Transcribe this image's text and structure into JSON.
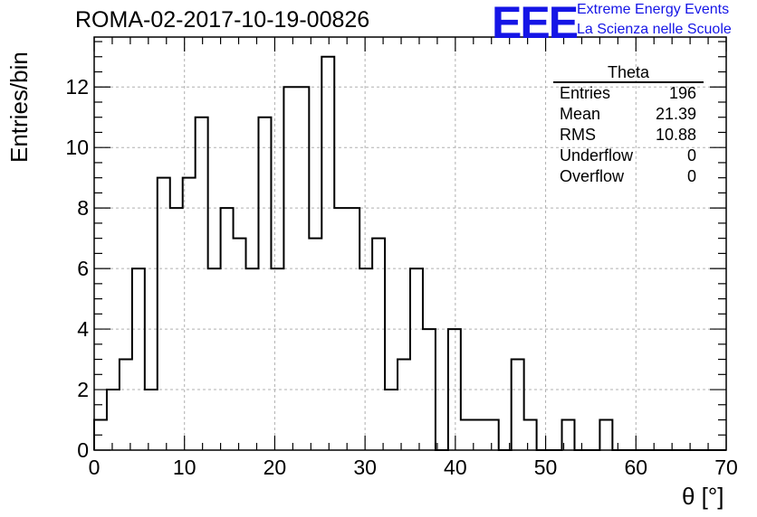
{
  "header": {
    "run_title": "ROMA-02-2017-10-19-00826",
    "logo_letters": "EEE",
    "logo_line1": "Extreme Energy Events",
    "logo_line2": "La Scienza nelle Scuole",
    "brand_color": "#1515e6"
  },
  "stats_box": {
    "title": "Theta",
    "rows": [
      {
        "label": "Entries",
        "value": "196"
      },
      {
        "label": "Mean",
        "value": "21.39"
      },
      {
        "label": "RMS",
        "value": "10.88"
      },
      {
        "label": "Underflow",
        "value": "0"
      },
      {
        "label": "Overflow",
        "value": "0"
      }
    ]
  },
  "chart_data": {
    "type": "bar",
    "style": "step-histogram",
    "title": "ROMA-02-2017-10-19-00826",
    "xlabel": "θ [°]",
    "ylabel": "Entries/bin",
    "xlim": [
      0,
      70
    ],
    "ylim": [
      0,
      13.65
    ],
    "x_ticks": [
      0,
      10,
      20,
      30,
      40,
      50,
      60,
      70
    ],
    "y_ticks": [
      0,
      2,
      4,
      6,
      8,
      10,
      12
    ],
    "grid": true,
    "bin_width": 1.4,
    "bin_edges_start": 0,
    "values": [
      1,
      2,
      3,
      6,
      2,
      9,
      8,
      9,
      11,
      6,
      8,
      7,
      6,
      11,
      6,
      12,
      12,
      7,
      13,
      8,
      8,
      6,
      7,
      2,
      3,
      6,
      4,
      0,
      4,
      1,
      1,
      1,
      0,
      3,
      1,
      0,
      0,
      1,
      0,
      0,
      1,
      0,
      0,
      0,
      0,
      0,
      0,
      0,
      0,
      0
    ],
    "line_color": "#000000",
    "grid_color": "#b0b0b0"
  }
}
